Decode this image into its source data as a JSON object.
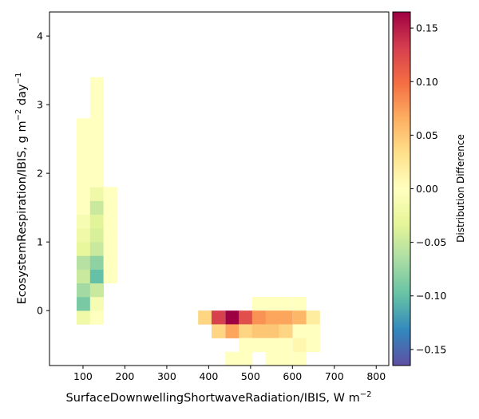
{
  "chart_data": {
    "type": "heatmap",
    "xlabel": "SurfaceDownwellingShortwaveRadiation/IBIS,  W m",
    "xlabel_sup": "−2",
    "ylabel": "EcosystemRespiration/IBIS,  g m",
    "ylabel_sup1": "−2",
    "ylabel_mid": " day",
    "ylabel_sup2": "−1",
    "xlim": [
      20,
      830
    ],
    "ylim": [
      -0.8,
      4.35
    ],
    "xticks": [
      100,
      200,
      300,
      400,
      500,
      600,
      700,
      800
    ],
    "yticks": [
      0,
      1,
      2,
      3,
      4
    ],
    "bin_width_x": 32.3,
    "bin_height_y": 0.2,
    "colorbar": {
      "label": "Distribution Difference",
      "colormap": "Spectral_r",
      "vmin": -0.165,
      "vmax": 0.165,
      "ticks": [
        -0.15,
        -0.1,
        -0.05,
        0.0,
        0.05,
        0.1,
        0.15
      ],
      "tick_labels": [
        "−0.15",
        "−0.10",
        "−0.05",
        "0.00",
        "0.05",
        "0.10",
        "0.15"
      ]
    },
    "cells": [
      {
        "x": 101,
        "y": -0.1,
        "v": -0.02
      },
      {
        "x": 101,
        "y": 0.1,
        "v": -0.09
      },
      {
        "x": 101,
        "y": 0.3,
        "v": -0.07
      },
      {
        "x": 101,
        "y": 0.5,
        "v": -0.05
      },
      {
        "x": 101,
        "y": 0.7,
        "v": -0.06
      },
      {
        "x": 101,
        "y": 0.9,
        "v": -0.03
      },
      {
        "x": 101,
        "y": 1.1,
        "v": -0.02
      },
      {
        "x": 101,
        "y": 1.3,
        "v": -0.01
      },
      {
        "x": 101,
        "y": 1.5,
        "v": 0.0
      },
      {
        "x": 101,
        "y": 1.7,
        "v": 0.0
      },
      {
        "x": 101,
        "y": 1.9,
        "v": 0.0
      },
      {
        "x": 101,
        "y": 2.1,
        "v": 0.0
      },
      {
        "x": 101,
        "y": 2.3,
        "v": 0.0
      },
      {
        "x": 101,
        "y": 2.5,
        "v": 0.0
      },
      {
        "x": 101,
        "y": 2.7,
        "v": 0.0
      },
      {
        "x": 133,
        "y": -0.1,
        "v": 0.0
      },
      {
        "x": 133,
        "y": 0.1,
        "v": -0.01
      },
      {
        "x": 133,
        "y": 0.3,
        "v": -0.05
      },
      {
        "x": 133,
        "y": 0.5,
        "v": -0.1
      },
      {
        "x": 133,
        "y": 0.7,
        "v": -0.08
      },
      {
        "x": 133,
        "y": 0.9,
        "v": -0.05
      },
      {
        "x": 133,
        "y": 1.1,
        "v": -0.04
      },
      {
        "x": 133,
        "y": 1.3,
        "v": -0.035
      },
      {
        "x": 133,
        "y": 1.5,
        "v": -0.05
      },
      {
        "x": 133,
        "y": 1.7,
        "v": -0.02
      },
      {
        "x": 133,
        "y": 1.9,
        "v": 0.0
      },
      {
        "x": 133,
        "y": 2.1,
        "v": 0.0
      },
      {
        "x": 133,
        "y": 2.3,
        "v": 0.0
      },
      {
        "x": 133,
        "y": 2.5,
        "v": 0.0
      },
      {
        "x": 133,
        "y": 2.7,
        "v": 0.0
      },
      {
        "x": 133,
        "y": 2.9,
        "v": 0.0
      },
      {
        "x": 133,
        "y": 3.1,
        "v": 0.0
      },
      {
        "x": 133,
        "y": 3.3,
        "v": 0.0
      },
      {
        "x": 165,
        "y": 0.5,
        "v": 0.0
      },
      {
        "x": 165,
        "y": 0.7,
        "v": 0.0
      },
      {
        "x": 165,
        "y": 0.9,
        "v": 0.0
      },
      {
        "x": 165,
        "y": 1.1,
        "v": 0.0
      },
      {
        "x": 165,
        "y": 1.3,
        "v": 0.0
      },
      {
        "x": 165,
        "y": 1.5,
        "v": 0.0
      },
      {
        "x": 165,
        "y": 1.7,
        "v": 0.0
      },
      {
        "x": 391,
        "y": -0.1,
        "v": 0.04
      },
      {
        "x": 423,
        "y": -0.1,
        "v": 0.13
      },
      {
        "x": 423,
        "y": -0.3,
        "v": 0.04
      },
      {
        "x": 456,
        "y": -0.1,
        "v": 0.165
      },
      {
        "x": 456,
        "y": -0.3,
        "v": 0.07
      },
      {
        "x": 456,
        "y": -0.7,
        "v": 0.0
      },
      {
        "x": 488,
        "y": -0.1,
        "v": 0.12
      },
      {
        "x": 488,
        "y": -0.3,
        "v": 0.04
      },
      {
        "x": 488,
        "y": -0.5,
        "v": 0.0
      },
      {
        "x": 488,
        "y": -0.7,
        "v": 0.0
      },
      {
        "x": 520,
        "y": 0.1,
        "v": 0.0
      },
      {
        "x": 520,
        "y": -0.1,
        "v": 0.08
      },
      {
        "x": 520,
        "y": -0.3,
        "v": 0.05
      },
      {
        "x": 520,
        "y": -0.5,
        "v": 0.0
      },
      {
        "x": 552,
        "y": 0.1,
        "v": 0.0
      },
      {
        "x": 552,
        "y": -0.1,
        "v": 0.07
      },
      {
        "x": 552,
        "y": -0.3,
        "v": 0.05
      },
      {
        "x": 552,
        "y": -0.5,
        "v": 0.0
      },
      {
        "x": 552,
        "y": -0.7,
        "v": 0.0
      },
      {
        "x": 584,
        "y": 0.1,
        "v": 0.0
      },
      {
        "x": 584,
        "y": -0.1,
        "v": 0.07
      },
      {
        "x": 584,
        "y": -0.3,
        "v": 0.04
      },
      {
        "x": 584,
        "y": -0.5,
        "v": 0.0
      },
      {
        "x": 584,
        "y": -0.7,
        "v": 0.0
      },
      {
        "x": 617,
        "y": 0.1,
        "v": 0.0
      },
      {
        "x": 617,
        "y": -0.1,
        "v": 0.06
      },
      {
        "x": 617,
        "y": -0.3,
        "v": 0.0
      },
      {
        "x": 617,
        "y": -0.5,
        "v": 0.01
      },
      {
        "x": 617,
        "y": -0.7,
        "v": 0.0
      },
      {
        "x": 649,
        "y": -0.1,
        "v": 0.02
      },
      {
        "x": 649,
        "y": -0.3,
        "v": 0.0
      },
      {
        "x": 649,
        "y": -0.5,
        "v": 0.0
      }
    ]
  }
}
